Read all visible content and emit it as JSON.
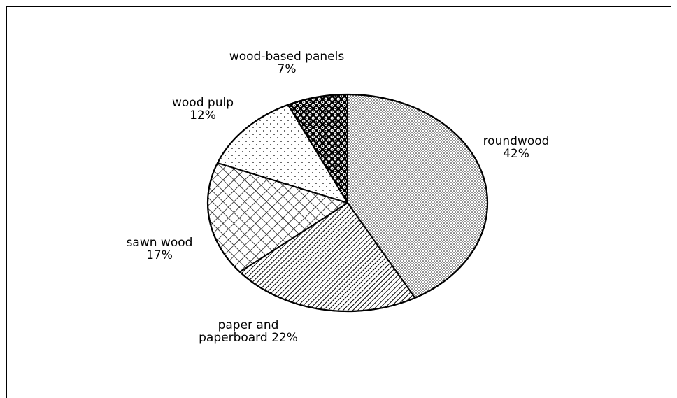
{
  "chart_data": {
    "type": "pie",
    "title": "",
    "slices": [
      {
        "label": "roundwood",
        "value_text": "42%",
        "value": 42,
        "pattern": "dots-dense"
      },
      {
        "label": "paper and",
        "label2": "paperboard 22%",
        "value_text": "",
        "value": 22,
        "pattern": "diagonal-hatch"
      },
      {
        "label": "sawn wood",
        "value_text": "17%",
        "value": 17,
        "pattern": "cross-hatch"
      },
      {
        "label": "wood pulp",
        "value_text": "12%",
        "value": 12,
        "pattern": "dots-sparse"
      },
      {
        "label": "wood-based panels",
        "value_text": "7%",
        "value": 7,
        "pattern": "checker-dots"
      }
    ],
    "start_angle_deg": 0,
    "direction": "clockwise",
    "legend": "none",
    "colors": {
      "ink": "#000000",
      "background": "#ffffff"
    }
  }
}
